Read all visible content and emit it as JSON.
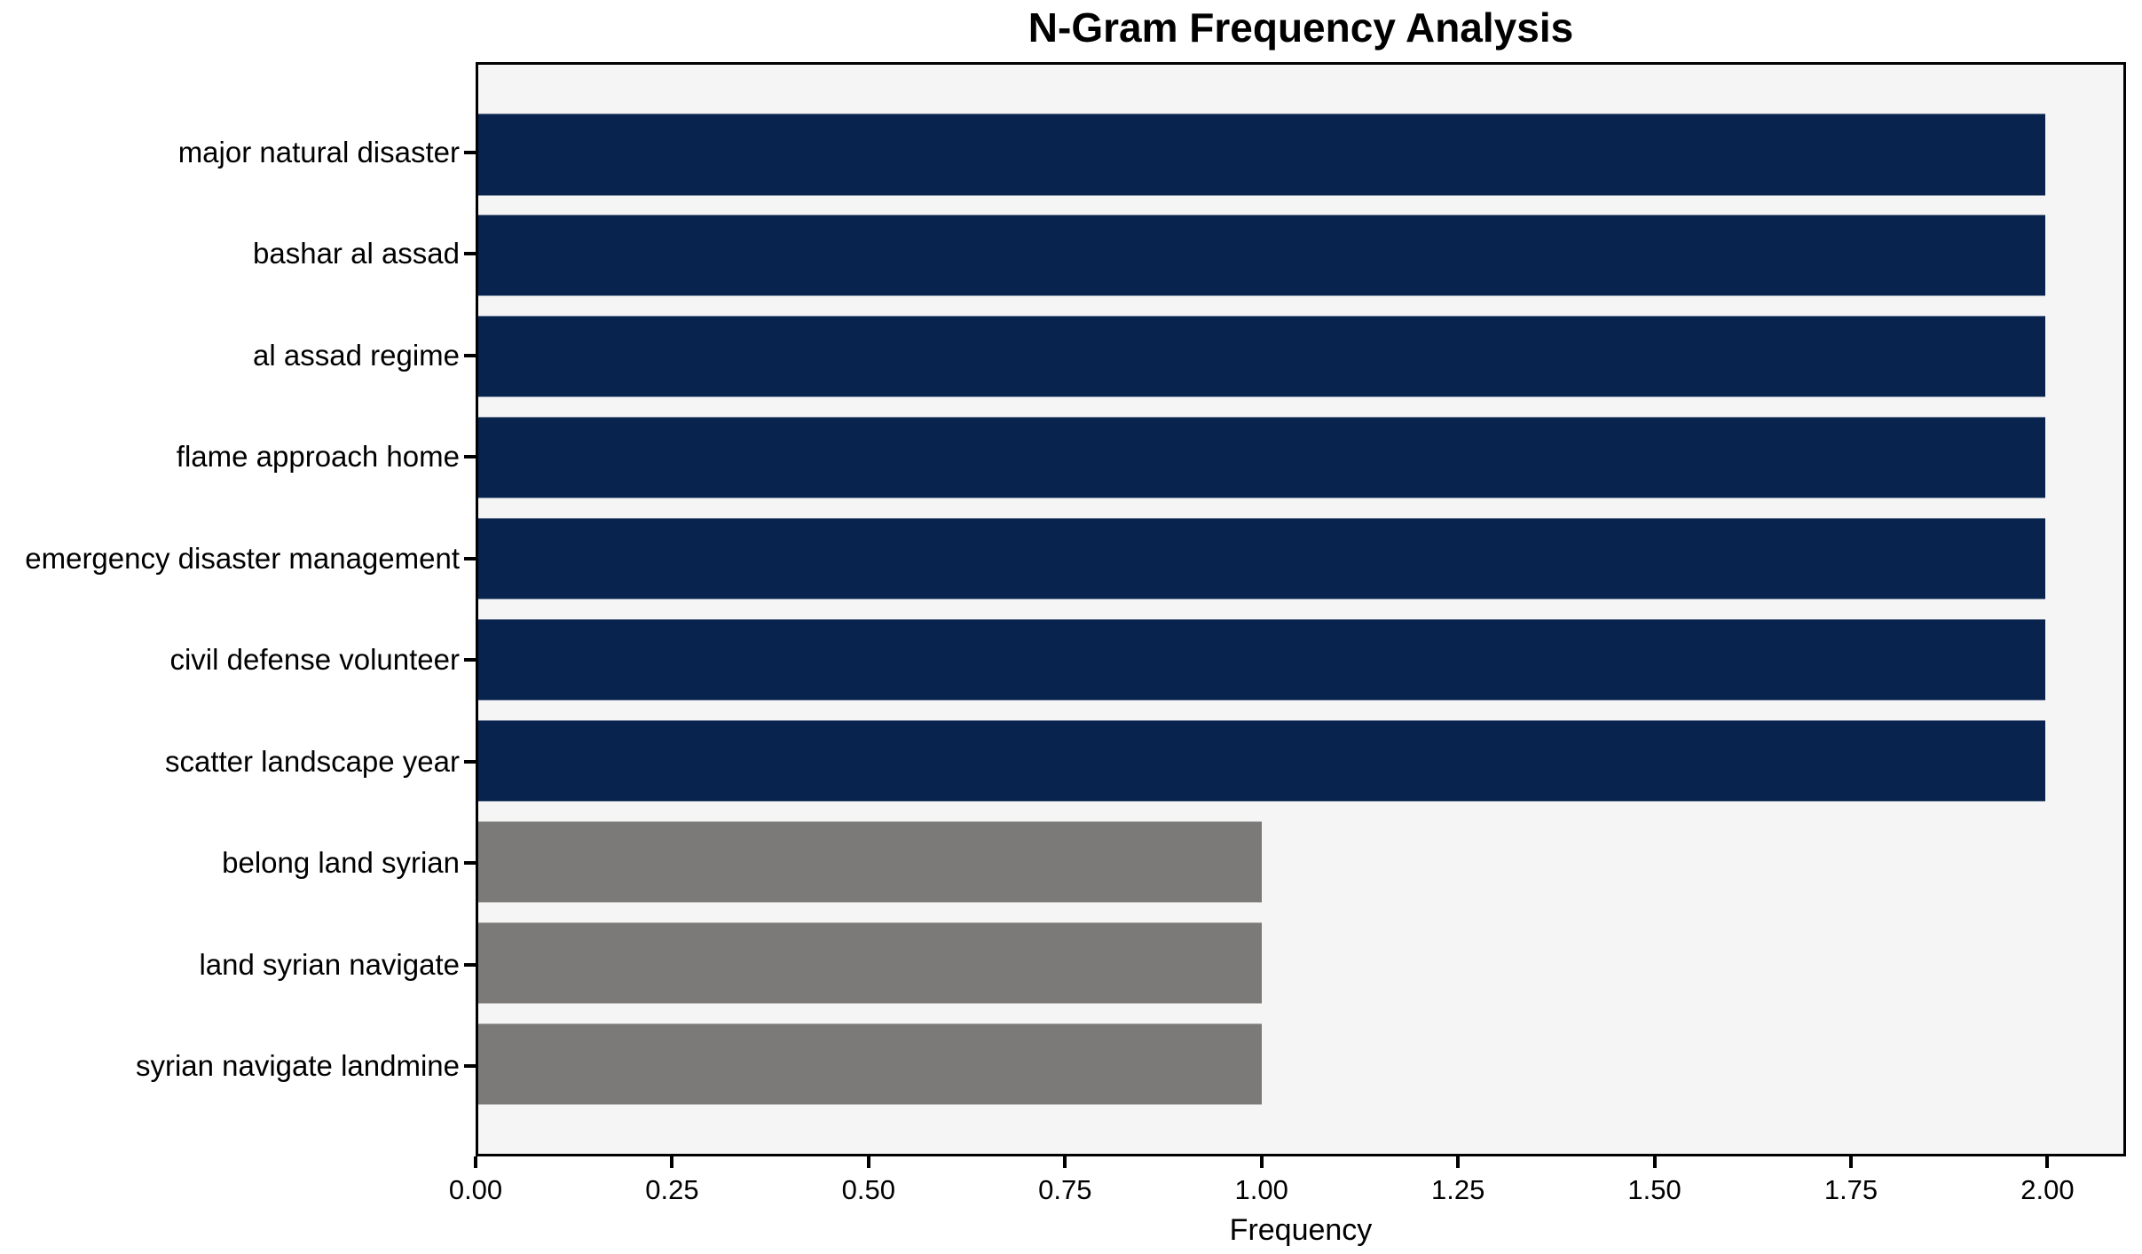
{
  "chart_data": {
    "type": "bar",
    "orientation": "horizontal",
    "title": "N-Gram Frequency Analysis",
    "xlabel": "Frequency",
    "ylabel": "",
    "categories": [
      "major natural disaster",
      "bashar al assad",
      "al assad regime",
      "flame approach home",
      "emergency disaster management",
      "civil defense volunteer",
      "scatter landscape year",
      "belong land syrian",
      "land syrian navigate",
      "syrian navigate landmine"
    ],
    "values": [
      2,
      2,
      2,
      2,
      2,
      2,
      2,
      1,
      1,
      1
    ],
    "bar_colors": [
      "#08234e",
      "#08234e",
      "#08234e",
      "#08234e",
      "#08234e",
      "#08234e",
      "#08234e",
      "#7b7a78",
      "#7b7a78",
      "#7b7a78"
    ],
    "xlim": [
      0,
      2.1
    ],
    "xticks": [
      0,
      0.25,
      0.5,
      0.75,
      1.0,
      1.25,
      1.5,
      1.75,
      2.0
    ],
    "xtick_labels": [
      "0.00",
      "0.25",
      "0.50",
      "0.75",
      "1.00",
      "1.25",
      "1.50",
      "1.75",
      "2.00"
    ],
    "grid": false,
    "legend": null,
    "plot_background": "#f5f5f5",
    "figure_background": "#ffffff",
    "spine_color": "#000000"
  }
}
